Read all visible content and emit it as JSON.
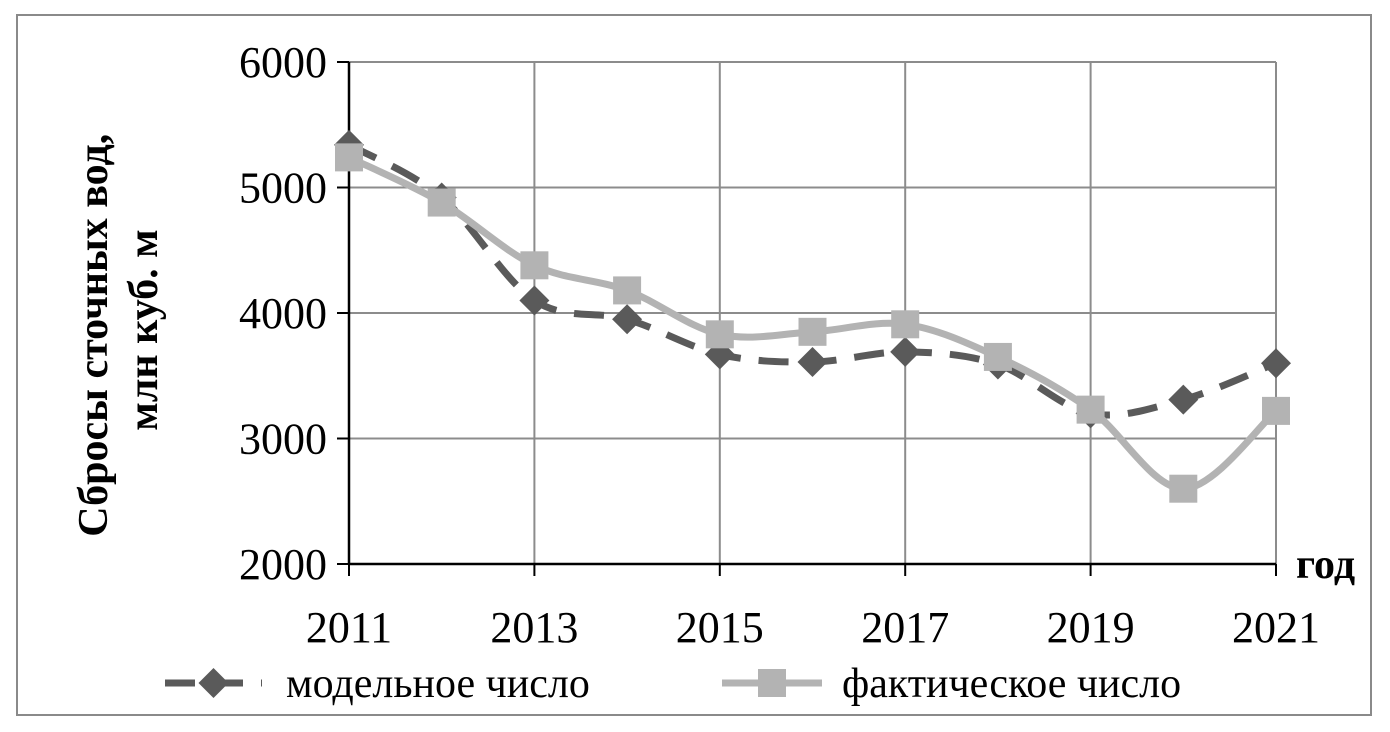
{
  "chart_data": {
    "type": "line",
    "title": "",
    "ylabel_lines": [
      "Сбросы сточных вод,",
      "млн куб. м"
    ],
    "xlabel": "год",
    "x": [
      2011,
      2012,
      2013,
      2014,
      2015,
      2016,
      2017,
      2018,
      2019,
      2020,
      2021
    ],
    "x_tick_labels": [
      "2011",
      "2013",
      "2015",
      "2017",
      "2019",
      "2021"
    ],
    "y_tick_labels": [
      "2000",
      "3000",
      "4000",
      "5000",
      "6000"
    ],
    "xlim": [
      2011,
      2021
    ],
    "ylim": [
      2000,
      6000
    ],
    "grid": true,
    "legend_position": "bottom",
    "series": [
      {
        "name": "модельное число",
        "line_style": "dashed",
        "marker": "diamond",
        "color": "#5a5a5a",
        "values": [
          5340,
          4920,
          4100,
          3950,
          3670,
          3610,
          3690,
          3590,
          3200,
          3310,
          3600
        ]
      },
      {
        "name": "фактическое число",
        "line_style": "solid",
        "marker": "square",
        "color": "#b3b3b3",
        "values": [
          5240,
          4880,
          4380,
          4180,
          3830,
          3850,
          3910,
          3650,
          3230,
          2600,
          3220
        ]
      }
    ]
  }
}
